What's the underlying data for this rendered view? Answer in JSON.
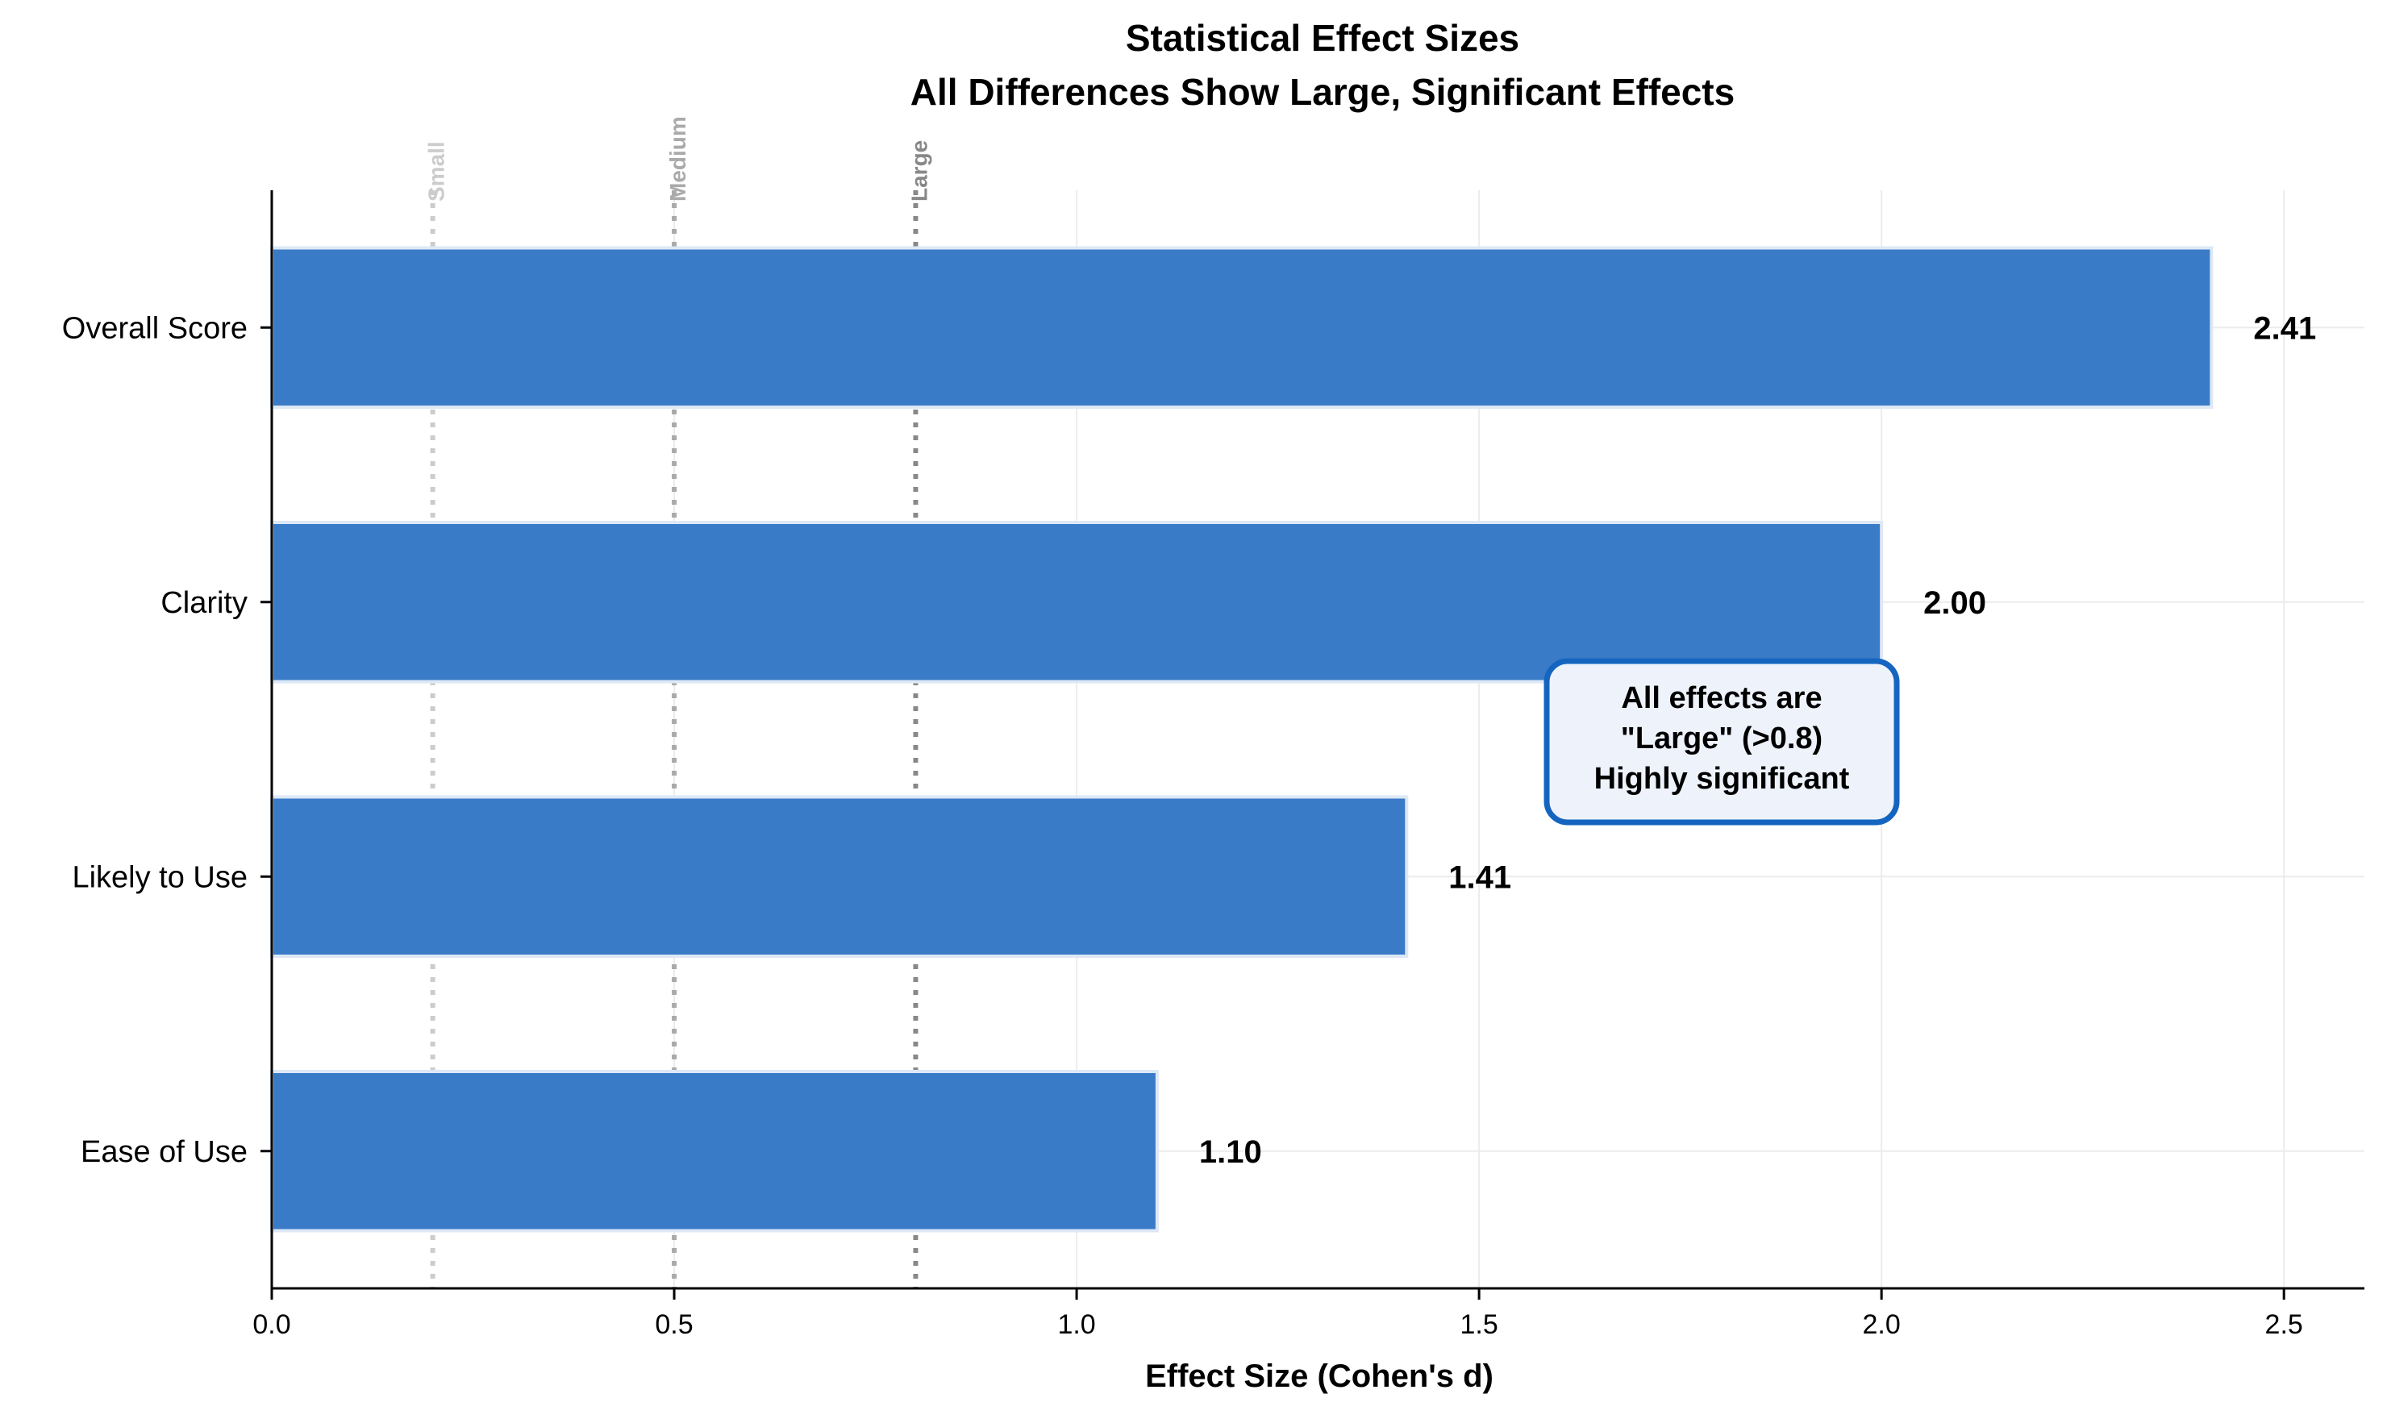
{
  "chart_data": {
    "type": "bar",
    "orientation": "horizontal",
    "title_line1": "Statistical Effect Sizes",
    "title_line2": "All Differences Show Large, Significant Effects",
    "xlabel": "Effect Size (Cohen's d)",
    "ylabel": "",
    "xlim": [
      0,
      2.6
    ],
    "xticks": [
      0.0,
      0.5,
      1.0,
      1.5,
      2.0,
      2.5
    ],
    "xtick_labels": [
      "0.0",
      "0.5",
      "1.0",
      "1.5",
      "2.0",
      "2.5"
    ],
    "categories": [
      "Overall Score",
      "Clarity",
      "Likely to Use",
      "Ease of Use"
    ],
    "values": [
      2.41,
      2.0,
      1.41,
      1.1
    ],
    "value_labels": [
      "2.41",
      "2.00",
      "1.41",
      "1.10"
    ],
    "grid": true,
    "bar_color": "#3a7bc8",
    "bar_edge_color": "#dde8f6",
    "threshold_lines": [
      {
        "label": "Small",
        "value": 0.2,
        "color": "#cccccc"
      },
      {
        "label": "Medium",
        "value": 0.5,
        "color": "#aaaaaa"
      },
      {
        "label": "Large",
        "value": 0.8,
        "color": "#888888"
      }
    ],
    "annotation": {
      "lines": [
        "All effects are",
        "\"Large\" (>0.8)",
        "Highly significant"
      ],
      "border_color": "#1565c0",
      "fill_color": "#eef3fb"
    }
  }
}
